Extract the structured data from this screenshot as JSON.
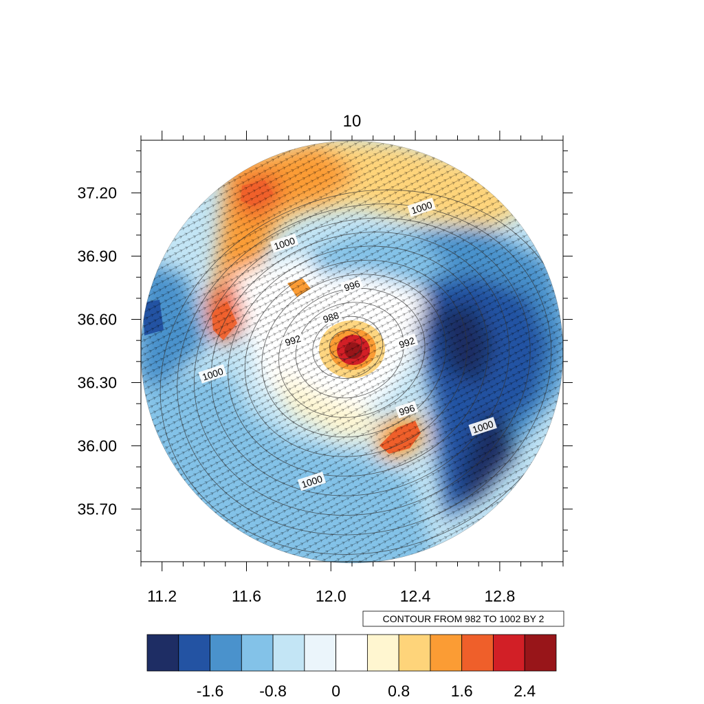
{
  "chart_data": {
    "type": "heatmap",
    "title": "10",
    "x_ticks": [
      "11.2",
      "11.6",
      "12.0",
      "12.4",
      "12.8"
    ],
    "x_tick_values": [
      11.2,
      11.6,
      12.0,
      12.4,
      12.8
    ],
    "y_ticks": [
      "37.20",
      "36.90",
      "36.60",
      "36.30",
      "36.00",
      "35.70"
    ],
    "y_tick_values": [
      37.2,
      36.9,
      36.6,
      36.3,
      36.0,
      35.7
    ],
    "xlim": [
      11.1,
      13.1
    ],
    "ylim": [
      35.45,
      37.45
    ],
    "grid": false,
    "center": [
      12.07,
      36.48
    ],
    "contour_info": "CONTOUR FROM 982 TO 1002 BY 2",
    "contour_levels": [
      982,
      984,
      986,
      988,
      990,
      992,
      994,
      996,
      998,
      1000,
      1002
    ],
    "contour_labels": [
      {
        "text": "1000",
        "x": 12.43,
        "y": 37.13
      },
      {
        "text": "1000",
        "x": 11.78,
        "y": 36.96
      },
      {
        "text": "996",
        "x": 12.1,
        "y": 36.76
      },
      {
        "text": "988",
        "x": 12.0,
        "y": 36.61
      },
      {
        "text": "992",
        "x": 11.82,
        "y": 36.5
      },
      {
        "text": "992",
        "x": 12.36,
        "y": 36.49
      },
      {
        "text": "1000",
        "x": 11.44,
        "y": 36.34
      },
      {
        "text": "996",
        "x": 12.36,
        "y": 36.17
      },
      {
        "text": "1000",
        "x": 12.72,
        "y": 36.09
      },
      {
        "text": "1000",
        "x": 11.91,
        "y": 35.83
      }
    ],
    "colorbar": {
      "colors": [
        "#1e2d64",
        "#2353a3",
        "#4a92cc",
        "#83c2e8",
        "#c3e5f5",
        "#ebf5fb",
        "#ffffff",
        "#fff6d0",
        "#fed47a",
        "#fb9c34",
        "#ef5f2a",
        "#d21f26",
        "#981519"
      ],
      "tick_labels": [
        "-1.6",
        "-0.8",
        "0",
        "0.8",
        "1.6",
        "2.4"
      ],
      "tick_positions": [
        1,
        3,
        5,
        7,
        9,
        11
      ]
    }
  }
}
